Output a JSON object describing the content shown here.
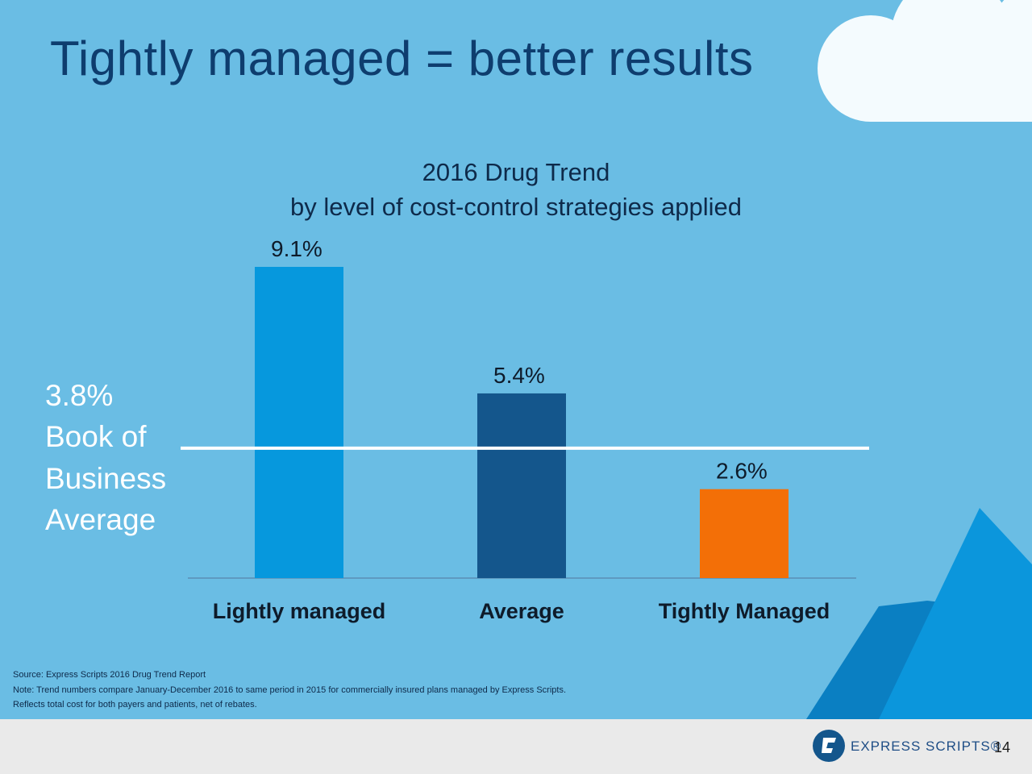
{
  "slide": {
    "title": "Tightly managed = better results",
    "page_number": "14",
    "book_of_business": [
      "3.8%",
      "Book of",
      "Business",
      "Average"
    ],
    "footnotes": [
      "Source: Express Scripts 2016 Drug Trend Report",
      "Note: Trend numbers compare January-December 2016 to same period in 2015 for commercially insured plans managed by Express Scripts.",
      "Reflects total cost for both payers and patients, net of rebates."
    ],
    "logo_text": "EXPRESS SCRIPTS®",
    "logo_icon": "express-scripts-logo-icon"
  },
  "colors": {
    "background": "#6abde4",
    "title": "#0e3d6e",
    "cloud": "#f4fbfe",
    "mountain_light": "#0b96dc",
    "mountain_dark": "#0a7fc2",
    "footer": "#eaeaea",
    "bar_lightly": "#0698dd",
    "bar_average": "#14568c",
    "bar_tightly": "#f36f07",
    "reference_line": "#ffffff",
    "axis": "#5a8fb5"
  },
  "chart_data": {
    "type": "bar",
    "title": "2016 Drug Trend",
    "subtitle": "by level of cost-control strategies applied",
    "categories": [
      "Lightly managed",
      "Average",
      "Tightly Managed"
    ],
    "values": [
      9.1,
      5.4,
      2.6
    ],
    "value_labels": [
      "9.1%",
      "5.4%",
      "2.6%"
    ],
    "reference_line": 3.8,
    "ylim": [
      0,
      9.1
    ],
    "grid": false,
    "legend": "none"
  }
}
